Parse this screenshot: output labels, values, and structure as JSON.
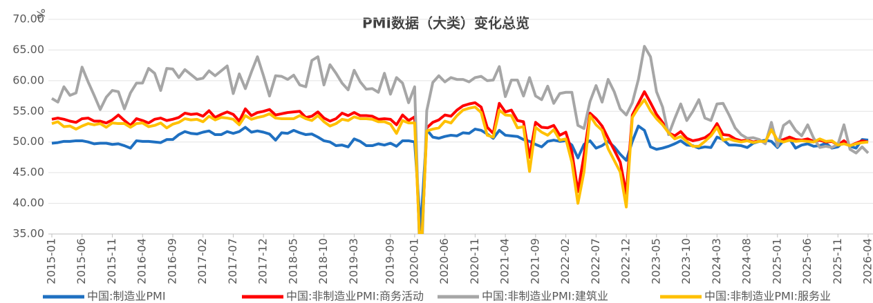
{
  "chart_data": {
    "type": "line",
    "title": "PMI数据（大类）变化总览",
    "y_label": "%",
    "categories": [
      "2015-01",
      null,
      null,
      null,
      null,
      "2015-06",
      null,
      null,
      null,
      null,
      "2015-11",
      null,
      null,
      null,
      null,
      "2016-04",
      null,
      null,
      null,
      null,
      "2016-09",
      null,
      null,
      null,
      null,
      "2017-02",
      null,
      null,
      null,
      null,
      "2017-07",
      null,
      null,
      null,
      null,
      "2017-12",
      null,
      null,
      null,
      null,
      "2018-05",
      null,
      null,
      null,
      null,
      "2018-10",
      null,
      null,
      null,
      null,
      "2019-03",
      null,
      null,
      null,
      null,
      null,
      "2019-09",
      null,
      null,
      null,
      "2020-01",
      null,
      null,
      null,
      null,
      "2020-06",
      null,
      null,
      null,
      null,
      "2020-11",
      null,
      null,
      null,
      null,
      "2021-04",
      null,
      null,
      null,
      null,
      "2021-09",
      null,
      null,
      null,
      null,
      "2022-02",
      null,
      null,
      null,
      null,
      "2022-07",
      null,
      null,
      null,
      null,
      "2022-12",
      null,
      null,
      null,
      null,
      "2023-05",
      null,
      null,
      null,
      null,
      "2023-10",
      null,
      null,
      null,
      null,
      "2024-03",
      null,
      null,
      null,
      null,
      "2024-08",
      null,
      null,
      null,
      null,
      "2025-01",
      null,
      null,
      null,
      null,
      "2025-06",
      null,
      null,
      null,
      null,
      "2025-11",
      null,
      null,
      null,
      null,
      "2026-04"
    ],
    "series": [
      {
        "name": "中国:制造业PMI",
        "color": "#1f70c1",
        "values": [
          49.8,
          49.9,
          50.1,
          50.1,
          50.2,
          50.2,
          50.0,
          49.7,
          49.8,
          49.8,
          49.6,
          49.7,
          49.4,
          49.0,
          50.2,
          50.1,
          50.1,
          50.0,
          49.9,
          50.4,
          50.4,
          51.2,
          51.7,
          51.4,
          51.3,
          51.6,
          51.8,
          51.2,
          51.2,
          51.7,
          51.4,
          51.7,
          52.4,
          51.6,
          51.8,
          51.6,
          51.3,
          50.3,
          51.5,
          51.4,
          51.9,
          51.5,
          51.2,
          51.3,
          50.8,
          50.2,
          50.0,
          49.4,
          49.5,
          49.2,
          50.5,
          50.1,
          49.4,
          49.4,
          49.7,
          49.5,
          49.8,
          49.3,
          50.2,
          50.2,
          50.0,
          35.7,
          52.0,
          50.8,
          50.6,
          50.9,
          51.1,
          51.0,
          51.5,
          51.4,
          52.1,
          51.9,
          51.3,
          50.6,
          51.9,
          51.1,
          51.0,
          50.9,
          50.4,
          50.1,
          49.6,
          49.2,
          50.1,
          50.3,
          50.1,
          50.2,
          49.5,
          47.4,
          49.6,
          50.2,
          49.0,
          49.4,
          50.1,
          49.2,
          48.0,
          47.0,
          50.1,
          52.6,
          51.9,
          49.2,
          48.8,
          49.0,
          49.3,
          49.7,
          50.2,
          49.5,
          49.4,
          49.0,
          49.2,
          49.1,
          50.8,
          50.4,
          49.5,
          49.5,
          49.4,
          49.1,
          49.8,
          50.1,
          50.3,
          50.1,
          49.1,
          50.2,
          50.5,
          49.0,
          49.5,
          49.7,
          49.3,
          49.4,
          49.8,
          49.0,
          49.2,
          50.1,
          49.3,
          49.0,
          50.4,
          50.3
        ]
      },
      {
        "name": "中国:非制造业PMI:商务活动",
        "color": "#ff0000",
        "values": [
          53.7,
          53.9,
          53.7,
          53.4,
          53.2,
          53.8,
          53.9,
          53.4,
          53.4,
          53.1,
          53.6,
          54.4,
          53.5,
          52.7,
          53.8,
          53.5,
          53.1,
          53.7,
          53.9,
          53.5,
          53.7,
          54.0,
          54.7,
          54.5,
          54.6,
          54.2,
          55.1,
          54.0,
          54.5,
          54.9,
          54.5,
          53.4,
          55.4,
          54.3,
          54.8,
          55.0,
          55.3,
          54.4,
          54.6,
          54.8,
          54.9,
          55.0,
          54.0,
          54.2,
          54.9,
          53.9,
          53.4,
          53.8,
          54.7,
          54.3,
          54.8,
          54.3,
          54.3,
          54.2,
          53.7,
          53.8,
          53.7,
          52.8,
          54.4,
          53.5,
          54.1,
          29.6,
          52.3,
          53.2,
          53.6,
          54.4,
          54.2,
          55.2,
          55.9,
          56.2,
          56.4,
          55.7,
          52.4,
          51.4,
          56.3,
          54.9,
          55.2,
          53.5,
          53.3,
          47.5,
          53.2,
          52.4,
          52.3,
          52.7,
          51.1,
          51.6,
          48.4,
          41.9,
          47.8,
          54.7,
          53.8,
          52.6,
          50.6,
          48.7,
          46.7,
          41.6,
          54.4,
          56.3,
          58.2,
          56.4,
          54.5,
          53.2,
          51.5,
          51.0,
          51.7,
          50.6,
          50.2,
          50.4,
          50.7,
          51.4,
          53.0,
          51.2,
          51.1,
          50.5,
          50.2,
          50.3,
          50.0,
          50.2,
          50.0,
          52.2,
          50.2,
          50.4,
          50.8,
          50.4,
          50.3,
          50.5,
          50.1,
          50.3,
          50.0,
          50.1,
          49.5,
          50.2,
          49.4,
          49.8,
          50.2,
          50.0
        ]
      },
      {
        "name": "中国:非制造业PMI:建筑业",
        "color": "#a6a6a6",
        "values": [
          57.1,
          56.5,
          59.0,
          57.6,
          58.0,
          62.2,
          59.8,
          57.6,
          55.3,
          57.3,
          58.4,
          58.2,
          55.4,
          58.0,
          59.6,
          59.6,
          62.0,
          61.2,
          58.4,
          62.0,
          61.9,
          60.5,
          61.8,
          61.0,
          60.2,
          60.4,
          61.6,
          60.8,
          61.6,
          62.4,
          57.9,
          61.1,
          58.7,
          61.4,
          63.9,
          60.8,
          57.5,
          60.8,
          60.7,
          60.2,
          60.9,
          59.3,
          59.0,
          63.3,
          63.9,
          59.3,
          62.6,
          61.2,
          59.6,
          58.5,
          61.7,
          59.8,
          58.6,
          58.7,
          58.1,
          61.2,
          57.8,
          60.5,
          59.6,
          56.4,
          59.0,
          26.6,
          55.1,
          59.7,
          60.8,
          59.8,
          60.5,
          60.2,
          60.2,
          59.8,
          60.5,
          60.7,
          60.0,
          60.1,
          62.3,
          57.4,
          60.1,
          60.1,
          57.5,
          60.5,
          57.5,
          56.9,
          59.1,
          56.3,
          57.9,
          58.1,
          58.1,
          52.7,
          52.2,
          56.6,
          59.2,
          56.5,
          60.2,
          58.2,
          55.4,
          54.4,
          56.4,
          60.2,
          65.6,
          63.9,
          58.2,
          55.7,
          51.2,
          53.8,
          56.2,
          53.5,
          55.0,
          56.9,
          53.9,
          53.5,
          56.2,
          56.3,
          54.4,
          52.3,
          51.2,
          50.6,
          50.7,
          50.4,
          49.7,
          53.2,
          49.3,
          52.7,
          53.4,
          51.9,
          51.0,
          52.8,
          50.6,
          49.1,
          49.3,
          49.1,
          49.6,
          52.8,
          48.8,
          48.2,
          49.2,
          48.2
        ]
      },
      {
        "name": "中国:非制造业PMI:服务业",
        "color": "#ffc000",
        "values": [
          53.0,
          53.3,
          52.5,
          52.6,
          52.1,
          52.6,
          53.0,
          52.8,
          53.0,
          52.4,
          53.1,
          53.0,
          53.0,
          52.4,
          53.0,
          53.1,
          52.5,
          52.7,
          53.1,
          52.3,
          52.9,
          53.2,
          53.8,
          53.6,
          53.7,
          53.3,
          54.2,
          53.6,
          54.0,
          53.9,
          53.7,
          52.8,
          54.3,
          53.7,
          54.0,
          54.2,
          54.6,
          53.9,
          53.8,
          53.8,
          53.8,
          54.3,
          53.8,
          53.5,
          54.3,
          53.3,
          52.6,
          53.0,
          53.7,
          53.5,
          54.1,
          53.8,
          53.8,
          53.7,
          53.3,
          53.3,
          52.9,
          51.4,
          53.5,
          53.1,
          53.1,
          30.1,
          51.8,
          52.1,
          52.3,
          53.4,
          53.1,
          54.3,
          55.2,
          55.5,
          55.7,
          54.8,
          51.1,
          50.8,
          55.2,
          54.4,
          54.3,
          52.3,
          52.5,
          45.2,
          52.4,
          51.6,
          51.1,
          52.0,
          50.3,
          50.5,
          46.7,
          40.0,
          45.1,
          54.3,
          52.8,
          51.9,
          48.9,
          47.0,
          45.1,
          39.4,
          54.0,
          55.6,
          56.9,
          55.1,
          53.8,
          52.8,
          51.5,
          50.5,
          50.9,
          50.1,
          49.3,
          49.3,
          50.1,
          51.0,
          52.4,
          50.3,
          50.5,
          50.2,
          50.0,
          50.2,
          49.9,
          50.1,
          50.1,
          52.0,
          50.3,
          50.0,
          50.3,
          50.1,
          50.2,
          50.1,
          50.0,
          50.5,
          50.1,
          50.2,
          49.5,
          49.7,
          49.4,
          49.7,
          49.9,
          50.0
        ]
      }
    ],
    "ylim": [
      35,
      70
    ],
    "yticks": [
      {
        "value": 35,
        "label": "35.00"
      },
      {
        "value": 40,
        "label": "40.00"
      },
      {
        "value": 45,
        "label": "45.00"
      },
      {
        "value": 50,
        "label": "50.00"
      },
      {
        "value": 55,
        "label": "55.00"
      },
      {
        "value": 60,
        "label": "60.00"
      },
      {
        "value": 65,
        "label": "65.00"
      },
      {
        "value": 70,
        "label": "70.00"
      }
    ],
    "grid": true,
    "legend": "bottom"
  }
}
